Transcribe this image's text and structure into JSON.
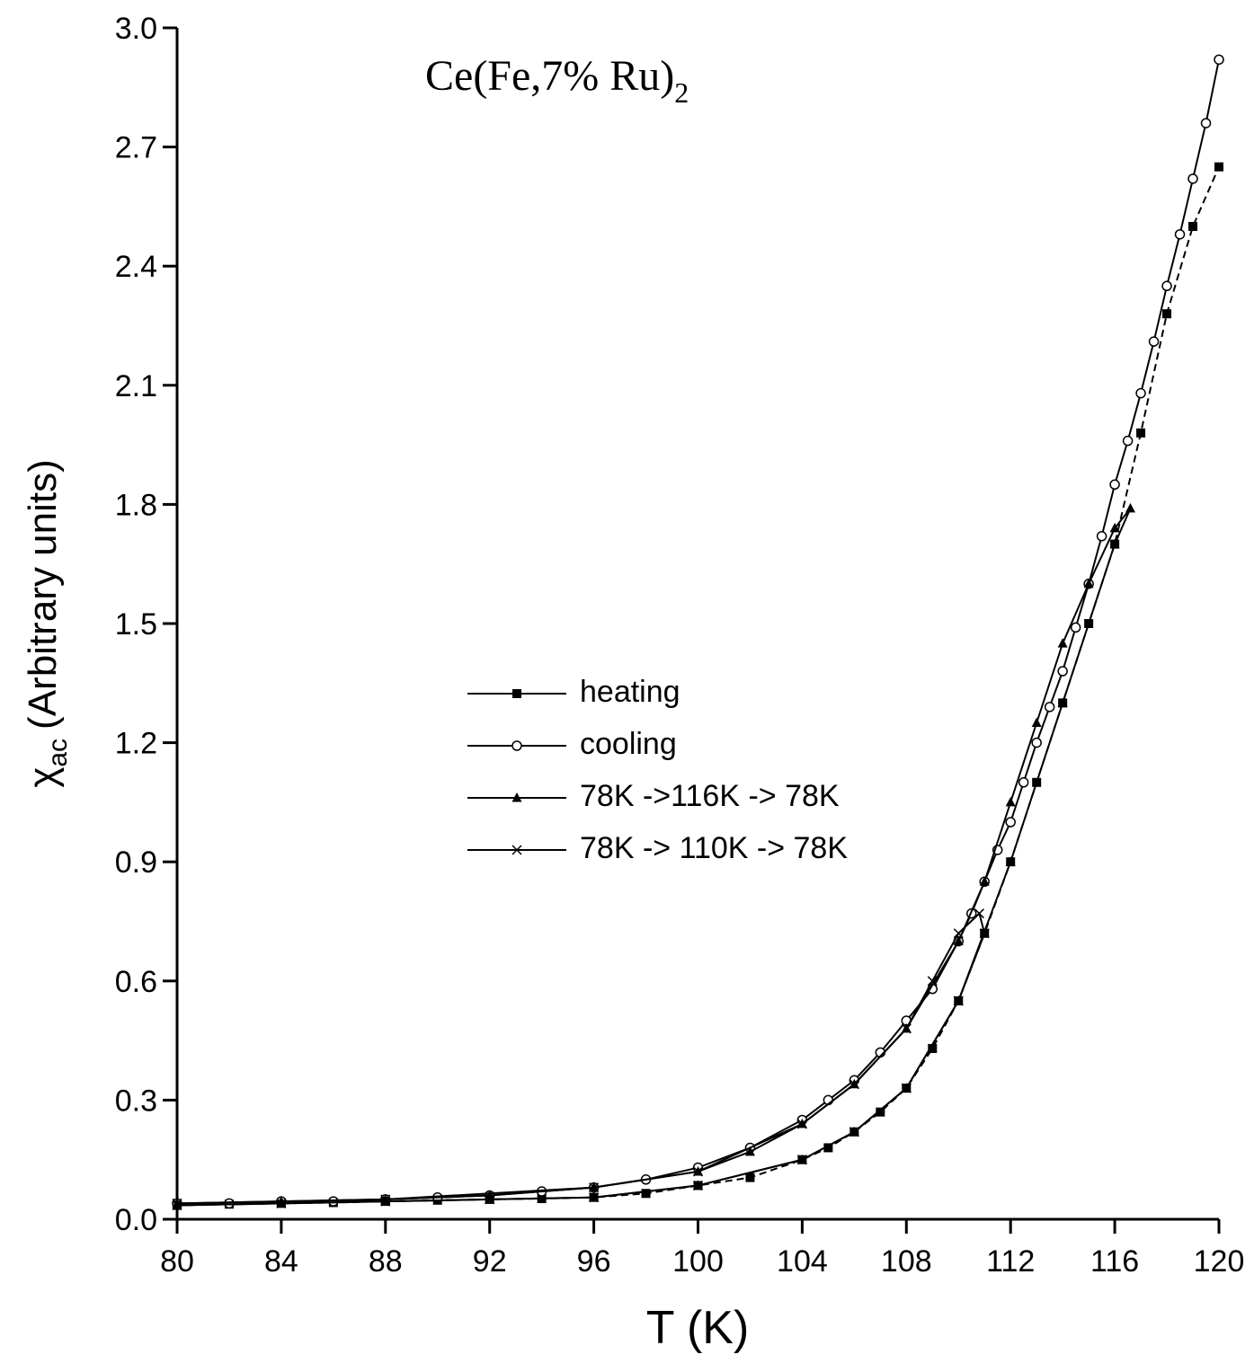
{
  "chart_data": {
    "type": "line",
    "title": {
      "text": "Ce(Fe,7% Ru)",
      "subscript": "2"
    },
    "x_label": "T (K)",
    "y_label": {
      "symbol": "χ",
      "subscript": "ac",
      "text": "(Arbitrary units)"
    },
    "xlim": [
      80,
      120
    ],
    "xticks": [
      80,
      84,
      88,
      92,
      96,
      100,
      104,
      108,
      112,
      116,
      120
    ],
    "ylim": [
      0,
      3
    ],
    "yticks": [
      {
        "value": 0,
        "label": "0.0"
      },
      0.3,
      0.6,
      0.9,
      1.2,
      1.5,
      1.8,
      2.1,
      2.4,
      2.7,
      {
        "value": 3,
        "label": "3.0"
      }
    ],
    "series": [
      {
        "name": "heating",
        "color": "#000000",
        "marker": "square",
        "dash": true,
        "x": [
          80,
          82,
          84,
          86,
          88,
          90,
          92,
          94,
          96,
          98,
          100,
          102,
          104,
          105,
          106,
          107,
          108,
          109,
          110,
          111,
          112,
          113,
          114,
          115,
          116,
          117,
          118,
          119,
          120
        ],
        "values": [
          0.035,
          0.038,
          0.04,
          0.042,
          0.045,
          0.048,
          0.05,
          0.052,
          0.055,
          0.065,
          0.085,
          0.105,
          0.15,
          0.18,
          0.22,
          0.27,
          0.33,
          0.43,
          0.55,
          0.72,
          0.9,
          1.1,
          1.3,
          1.5,
          1.7,
          1.98,
          2.28,
          2.5,
          2.65
        ]
      },
      {
        "name": "cooling",
        "color": "#000000",
        "marker": "circle",
        "dash": false,
        "x": [
          120,
          119.5,
          119,
          118.5,
          118,
          117.5,
          117,
          116.5,
          116,
          115.5,
          115,
          114.5,
          114,
          113.5,
          113,
          112.5,
          112,
          111.5,
          111,
          110.5,
          110,
          109,
          108,
          107,
          106,
          105,
          104,
          102,
          100,
          98,
          96,
          94,
          92,
          90,
          88,
          86,
          84,
          82,
          80
        ],
        "values": [
          2.92,
          2.76,
          2.62,
          2.48,
          2.35,
          2.21,
          2.08,
          1.96,
          1.85,
          1.72,
          1.6,
          1.49,
          1.38,
          1.29,
          1.2,
          1.1,
          1.0,
          0.93,
          0.85,
          0.77,
          0.7,
          0.58,
          0.5,
          0.42,
          0.35,
          0.3,
          0.25,
          0.18,
          0.13,
          0.1,
          0.08,
          0.07,
          0.06,
          0.055,
          0.05,
          0.045,
          0.045,
          0.04,
          0.04
        ]
      },
      {
        "name": "78K ->116K -> 78K",
        "color": "#000000",
        "marker": "triangle",
        "dash": false,
        "x": [
          80,
          84,
          88,
          92,
          96,
          100,
          104,
          106,
          108,
          110,
          112,
          114,
          116,
          116.6,
          116,
          115,
          114,
          113,
          112,
          111,
          110,
          108,
          106,
          104,
          102,
          100,
          96,
          92,
          88,
          84,
          80
        ],
        "values": [
          0.035,
          0.04,
          0.045,
          0.05,
          0.055,
          0.085,
          0.15,
          0.22,
          0.33,
          0.55,
          0.9,
          1.3,
          1.7,
          1.79,
          1.74,
          1.6,
          1.45,
          1.25,
          1.05,
          0.85,
          0.7,
          0.48,
          0.34,
          0.24,
          0.17,
          0.12,
          0.08,
          0.06,
          0.05,
          0.045,
          0.04
        ]
      },
      {
        "name": "78K -> 110K -> 78K",
        "color": "#000000",
        "marker": "cross",
        "dash": false,
        "x": [
          80,
          84,
          88,
          92,
          96,
          100,
          104,
          106,
          108,
          110,
          111,
          110.8,
          110,
          109,
          108,
          106,
          104,
          100,
          96,
          88,
          80
        ],
        "values": [
          0.035,
          0.04,
          0.045,
          0.05,
          0.055,
          0.085,
          0.15,
          0.22,
          0.33,
          0.55,
          0.72,
          0.77,
          0.72,
          0.6,
          0.48,
          0.34,
          0.24,
          0.12,
          0.08,
          0.05,
          0.04
        ]
      }
    ]
  }
}
